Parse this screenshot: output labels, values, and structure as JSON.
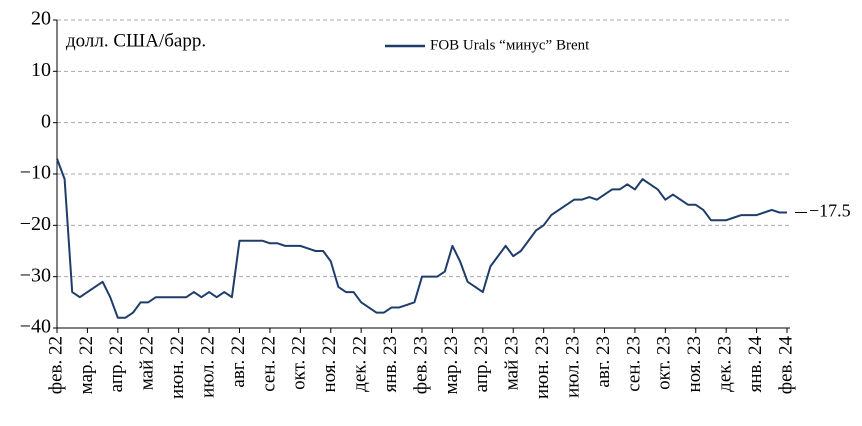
{
  "chart_data": {
    "type": "line",
    "y_label": "долл. США/барр.",
    "end_label": "−17.5",
    "categories": [
      "фев. 22",
      null,
      null,
      null,
      "мар. 22",
      null,
      null,
      null,
      "апр. 22",
      null,
      null,
      null,
      "май 22",
      null,
      null,
      null,
      "июн. 22",
      null,
      null,
      null,
      "июл. 22",
      null,
      null,
      null,
      "авг. 22",
      null,
      null,
      null,
      "сен. 22",
      null,
      null,
      null,
      "окт. 22",
      null,
      null,
      null,
      "ноя. 22",
      null,
      null,
      null,
      "дек. 22",
      null,
      null,
      null,
      "янв. 23",
      null,
      null,
      null,
      "фев. 23",
      null,
      null,
      null,
      "мар. 23",
      null,
      null,
      null,
      "апр. 23",
      null,
      null,
      null,
      "май 23",
      null,
      null,
      null,
      "июн. 23",
      null,
      null,
      null,
      "июл. 23",
      null,
      null,
      null,
      "авг. 23",
      null,
      null,
      null,
      "сен. 23",
      null,
      null,
      null,
      "окт. 23",
      null,
      null,
      null,
      "ноя. 23",
      null,
      null,
      null,
      "дек. 23",
      null,
      null,
      null,
      "янв. 24",
      null,
      null,
      null,
      "фев. 24"
    ],
    "series": [
      {
        "name": "FOB Urals “минус” Brent",
        "color": "#1f3d6b",
        "values": [
          -7,
          -11,
          -33,
          -34,
          -33,
          -32,
          -31,
          -34,
          -38,
          -38,
          -37,
          -35,
          -35,
          -34,
          -34,
          -34,
          -34,
          -34,
          -33,
          -34,
          -33,
          -34,
          -33,
          -34,
          -23,
          -23,
          -23,
          -23,
          -23.5,
          -23.5,
          -24,
          -24,
          -24,
          -24.5,
          -25,
          -25,
          -27,
          -32,
          -33,
          -33,
          -35,
          -36,
          -37,
          -37,
          -36,
          -36,
          -35.5,
          -35,
          -30,
          -30,
          -30,
          -29,
          -24,
          -27,
          -31,
          -32,
          -33,
          -28,
          -26,
          -24,
          -26,
          -25,
          -23,
          -21,
          -20,
          -18,
          -17,
          -16,
          -15,
          -15,
          -14.5,
          -15,
          -14,
          -13,
          -13,
          -12,
          -13,
          -11,
          -12,
          -13,
          -15,
          -14,
          -15,
          -16,
          -16,
          -17,
          -19,
          -19,
          -19,
          -18.5,
          -18,
          -18,
          -18,
          -17.5,
          -17,
          -17.5,
          -17.5
        ]
      }
    ],
    "ylim": [
      -40,
      20
    ],
    "yticks": [
      20,
      10,
      0,
      {
        "value": -10,
        "label": "−10"
      },
      {
        "value": -20,
        "label": "−20"
      },
      {
        "value": -30,
        "label": "−30"
      },
      {
        "value": -40,
        "label": "−40"
      }
    ],
    "grid": true,
    "legend": "top"
  }
}
